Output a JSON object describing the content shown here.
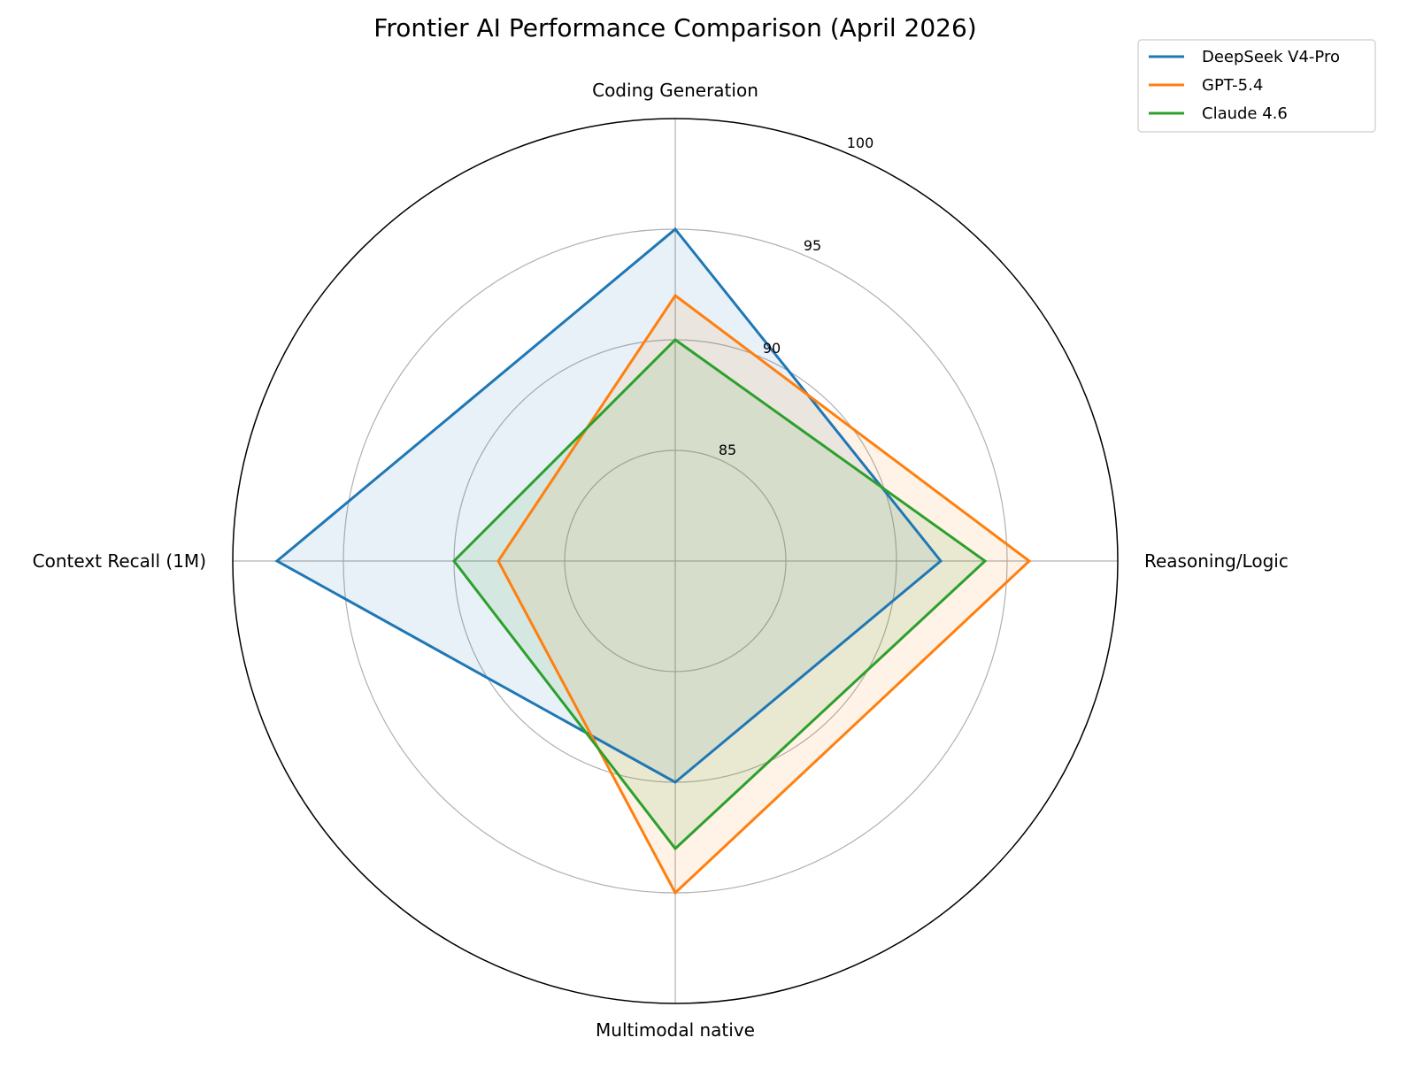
{
  "chart_data": {
    "type": "radar",
    "title": "Frontier AI Performance Comparison (April 2026)",
    "categories": [
      "Coding Generation",
      "Reasoning/Logic",
      "Multimodal native",
      "Context Recall (1M)"
    ],
    "series": [
      {
        "name": "DeepSeek V4-Pro",
        "color": "#1f77b4",
        "values": [
          95,
          92,
          90,
          98
        ]
      },
      {
        "name": "GPT-5.4",
        "color": "#ff7f0e",
        "values": [
          92,
          96,
          95,
          88
        ]
      },
      {
        "name": "Claude 4.6",
        "color": "#2ca02c",
        "values": [
          90,
          94,
          93,
          90
        ]
      }
    ],
    "radial_ticks": [
      85,
      90,
      95,
      100
    ],
    "rlim": [
      80,
      100
    ],
    "grid": true,
    "legend_position": "upper right (outside)",
    "fill_alpha": 0.1
  },
  "labels": {
    "title": "Frontier AI Performance Comparison (April 2026)",
    "axes": [
      "Coding Generation",
      "Reasoning/Logic",
      "Multimodal native",
      "Context Recall (1M)"
    ],
    "ticks": [
      "85",
      "90",
      "95",
      "100"
    ],
    "legend": [
      "DeepSeek V4-Pro",
      "GPT-5.4",
      "Claude 4.6"
    ]
  }
}
